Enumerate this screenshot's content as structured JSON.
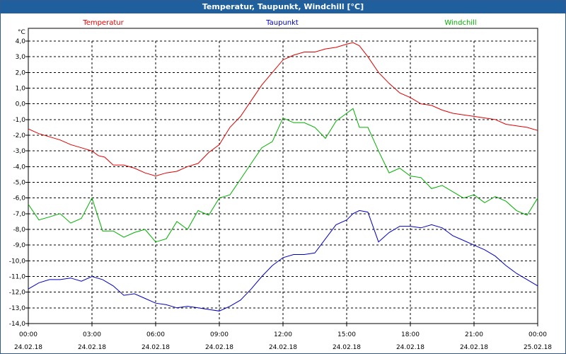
{
  "window": {
    "title": "Temperatur, Taupunkt, Windchill [°C]"
  },
  "chart_data": {
    "type": "line",
    "title": "",
    "xlabel": "",
    "ylabel": "°C",
    "ylim": [
      -14,
      4
    ],
    "xlim": [
      0,
      24
    ],
    "grid": true,
    "legend_position": "top",
    "y_ticks": [
      4,
      3,
      2,
      1,
      0,
      -1,
      -2,
      -3,
      -4,
      -5,
      -6,
      -7,
      -8,
      -9,
      -10,
      -11,
      -12,
      -13,
      -14
    ],
    "y_tick_labels": [
      "4,0",
      "3,0",
      "2,0",
      "1,0",
      "0,0",
      "-1,0",
      "-2,0",
      "-3,0",
      "-4,0",
      "-5,0",
      "-6,0",
      "-7,0",
      "-8,0",
      "-9,0",
      "-10,0",
      "-11,0",
      "-12,0",
      "-13,0",
      "-14,0"
    ],
    "x_ticks": [
      {
        "x": 0,
        "time": "00:00",
        "date": "24.02.18"
      },
      {
        "x": 3,
        "time": "03:00",
        "date": "24.02.18"
      },
      {
        "x": 6,
        "time": "06:00",
        "date": "24.02.18"
      },
      {
        "x": 9,
        "time": "09:00",
        "date": "24.02.18"
      },
      {
        "x": 12,
        "time": "12:00",
        "date": "24.02.18"
      },
      {
        "x": 15,
        "time": "15:00",
        "date": "24.02.18"
      },
      {
        "x": 18,
        "time": "18:00",
        "date": "24.02.18"
      },
      {
        "x": 21,
        "time": "21:00",
        "date": "24.02.18"
      },
      {
        "x": 24,
        "time": "00:00",
        "date": "25.02.18"
      }
    ],
    "series": [
      {
        "name": "Temperatur",
        "color": "#e00000",
        "x": [
          0,
          0.5,
          1,
          1.5,
          2,
          2.5,
          3,
          3.3,
          3.6,
          4,
          4.5,
          5,
          5.5,
          6,
          6.5,
          7,
          7.5,
          8,
          8.5,
          9,
          9.5,
          10,
          10.5,
          11,
          11.5,
          12,
          12.5,
          13,
          13.5,
          14,
          14.5,
          15,
          15.3,
          15.6,
          16,
          16.5,
          17,
          17.5,
          18,
          18.5,
          19,
          19.5,
          20,
          20.5,
          21,
          21.5,
          22,
          22.5,
          23,
          23.5,
          24
        ],
        "y": [
          -1.6,
          -1.9,
          -2.1,
          -2.3,
          -2.6,
          -2.8,
          -3.0,
          -3.3,
          -3.4,
          -3.9,
          -3.9,
          -4.1,
          -4.4,
          -4.6,
          -4.4,
          -4.3,
          -4.0,
          -3.8,
          -3.1,
          -2.6,
          -1.5,
          -0.8,
          0.2,
          1.2,
          2.0,
          2.8,
          3.1,
          3.3,
          3.3,
          3.5,
          3.6,
          3.8,
          3.9,
          3.7,
          3.0,
          2.0,
          1.3,
          0.7,
          0.4,
          0.0,
          -0.1,
          -0.4,
          -0.6,
          -0.7,
          -0.8,
          -0.9,
          -1.0,
          -1.3,
          -1.4,
          -1.5,
          -1.7
        ]
      },
      {
        "name": "Taupunkt",
        "color": "#0000c0",
        "x": [
          0,
          0.5,
          1,
          1.5,
          2,
          2.5,
          3,
          3.5,
          4,
          4.5,
          5,
          5.5,
          6,
          6.5,
          7,
          7.5,
          8,
          8.5,
          9,
          9.5,
          10,
          10.5,
          11,
          11.5,
          12,
          12.5,
          13,
          13.5,
          14,
          14.5,
          15,
          15.3,
          15.6,
          16,
          16.5,
          17,
          17.5,
          18,
          18.5,
          19,
          19.5,
          20,
          20.5,
          21,
          21.5,
          22,
          22.5,
          23,
          23.5,
          24
        ],
        "y": [
          -11.8,
          -11.4,
          -11.2,
          -11.2,
          -11.1,
          -11.3,
          -11.0,
          -11.2,
          -11.6,
          -12.2,
          -12.1,
          -12.4,
          -12.7,
          -12.8,
          -13.0,
          -12.9,
          -13.0,
          -13.1,
          -13.2,
          -12.9,
          -12.5,
          -11.8,
          -11.0,
          -10.3,
          -9.8,
          -9.6,
          -9.6,
          -9.5,
          -8.6,
          -7.7,
          -7.4,
          -7.0,
          -6.8,
          -6.9,
          -8.8,
          -8.2,
          -7.8,
          -7.8,
          -7.9,
          -7.7,
          -7.9,
          -8.4,
          -8.7,
          -9.0,
          -9.3,
          -9.7,
          -10.3,
          -10.8,
          -11.2,
          -11.6
        ]
      },
      {
        "name": "Windchill",
        "color": "#00b000",
        "x": [
          0,
          0.5,
          1,
          1.5,
          2,
          2.5,
          3,
          3.5,
          4,
          4.5,
          5,
          5.5,
          6,
          6.5,
          7,
          7.5,
          8,
          8.5,
          9,
          9.5,
          10,
          10.5,
          11,
          11.5,
          12,
          12.5,
          13,
          13.5,
          14,
          14.5,
          15,
          15.3,
          15.6,
          16,
          16.5,
          17,
          17.5,
          18,
          18.5,
          19,
          19.5,
          20,
          20.5,
          21,
          21.5,
          22,
          22.5,
          23,
          23.5,
          24
        ],
        "y": [
          -6.4,
          -7.4,
          -7.2,
          -7.0,
          -7.6,
          -7.3,
          -6.0,
          -8.1,
          -8.1,
          -8.5,
          -8.2,
          -8.0,
          -8.8,
          -8.6,
          -7.5,
          -8.0,
          -6.8,
          -7.1,
          -6.0,
          -5.8,
          -4.8,
          -3.8,
          -2.8,
          -2.4,
          -0.9,
          -1.2,
          -1.2,
          -1.5,
          -2.2,
          -1.1,
          -0.6,
          -0.3,
          -1.5,
          -1.5,
          -3.0,
          -4.4,
          -4.1,
          -4.6,
          -4.7,
          -5.4,
          -5.2,
          -5.6,
          -6.0,
          -5.8,
          -6.3,
          -5.9,
          -6.2,
          -6.8,
          -7.1,
          -6.0
        ]
      }
    ]
  }
}
